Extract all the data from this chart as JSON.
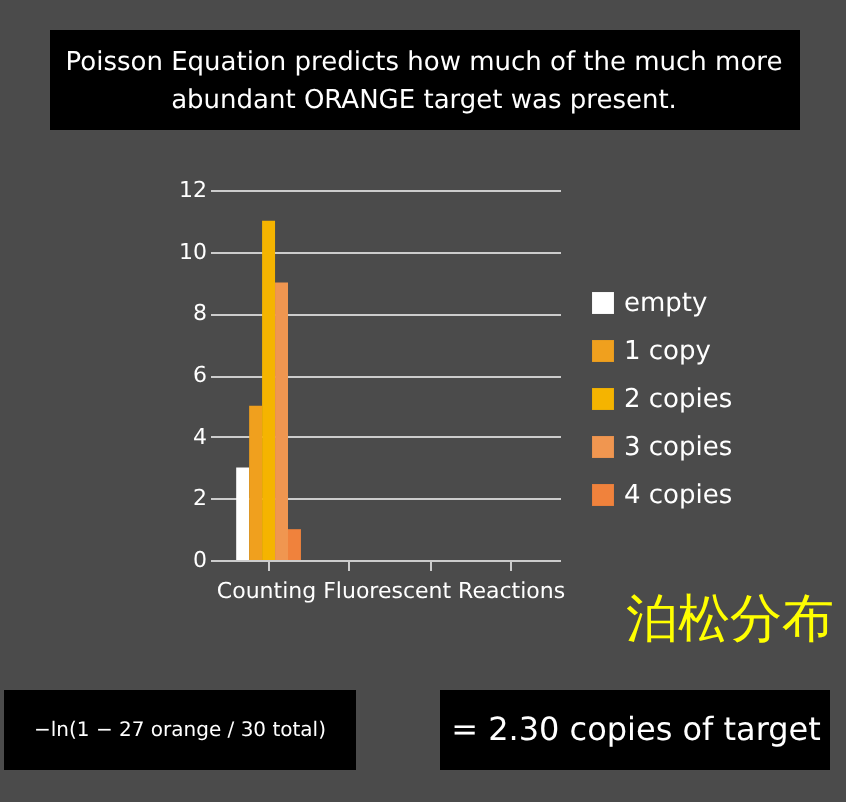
{
  "chart_data": {
    "type": "bar",
    "title": "Poisson Equation predicts how much of the much more abundant ORANGE target was present.",
    "xlabel": "Counting Fluorescent Reactions",
    "categories": [
      null,
      null,
      null,
      null
    ],
    "series": [
      {
        "name": "empty",
        "color": "#ffffff",
        "values": [
          3,
          null,
          null,
          null
        ]
      },
      {
        "name": "1 copy",
        "color": "#f0a01e",
        "values": [
          5,
          null,
          null,
          null
        ]
      },
      {
        "name": "2 copies",
        "color": "#f5b400",
        "values": [
          11,
          null,
          null,
          null
        ]
      },
      {
        "name": "3 copies",
        "color": "#f09650",
        "values": [
          9,
          null,
          null,
          null
        ]
      },
      {
        "name": "4 copies",
        "color": "#f0823c",
        "values": [
          1,
          null,
          null,
          null
        ]
      }
    ],
    "ylim": [
      0,
      12
    ],
    "yticks": [
      0,
      2,
      4,
      6,
      8,
      10,
      12
    ],
    "grid": "y",
    "legend": "right",
    "tick_labels": "y",
    "annotations": [
      "泊松分布",
      "−ln(1 − 27 orange / 30 total)",
      "= 2.30 copies of target"
    ]
  }
}
